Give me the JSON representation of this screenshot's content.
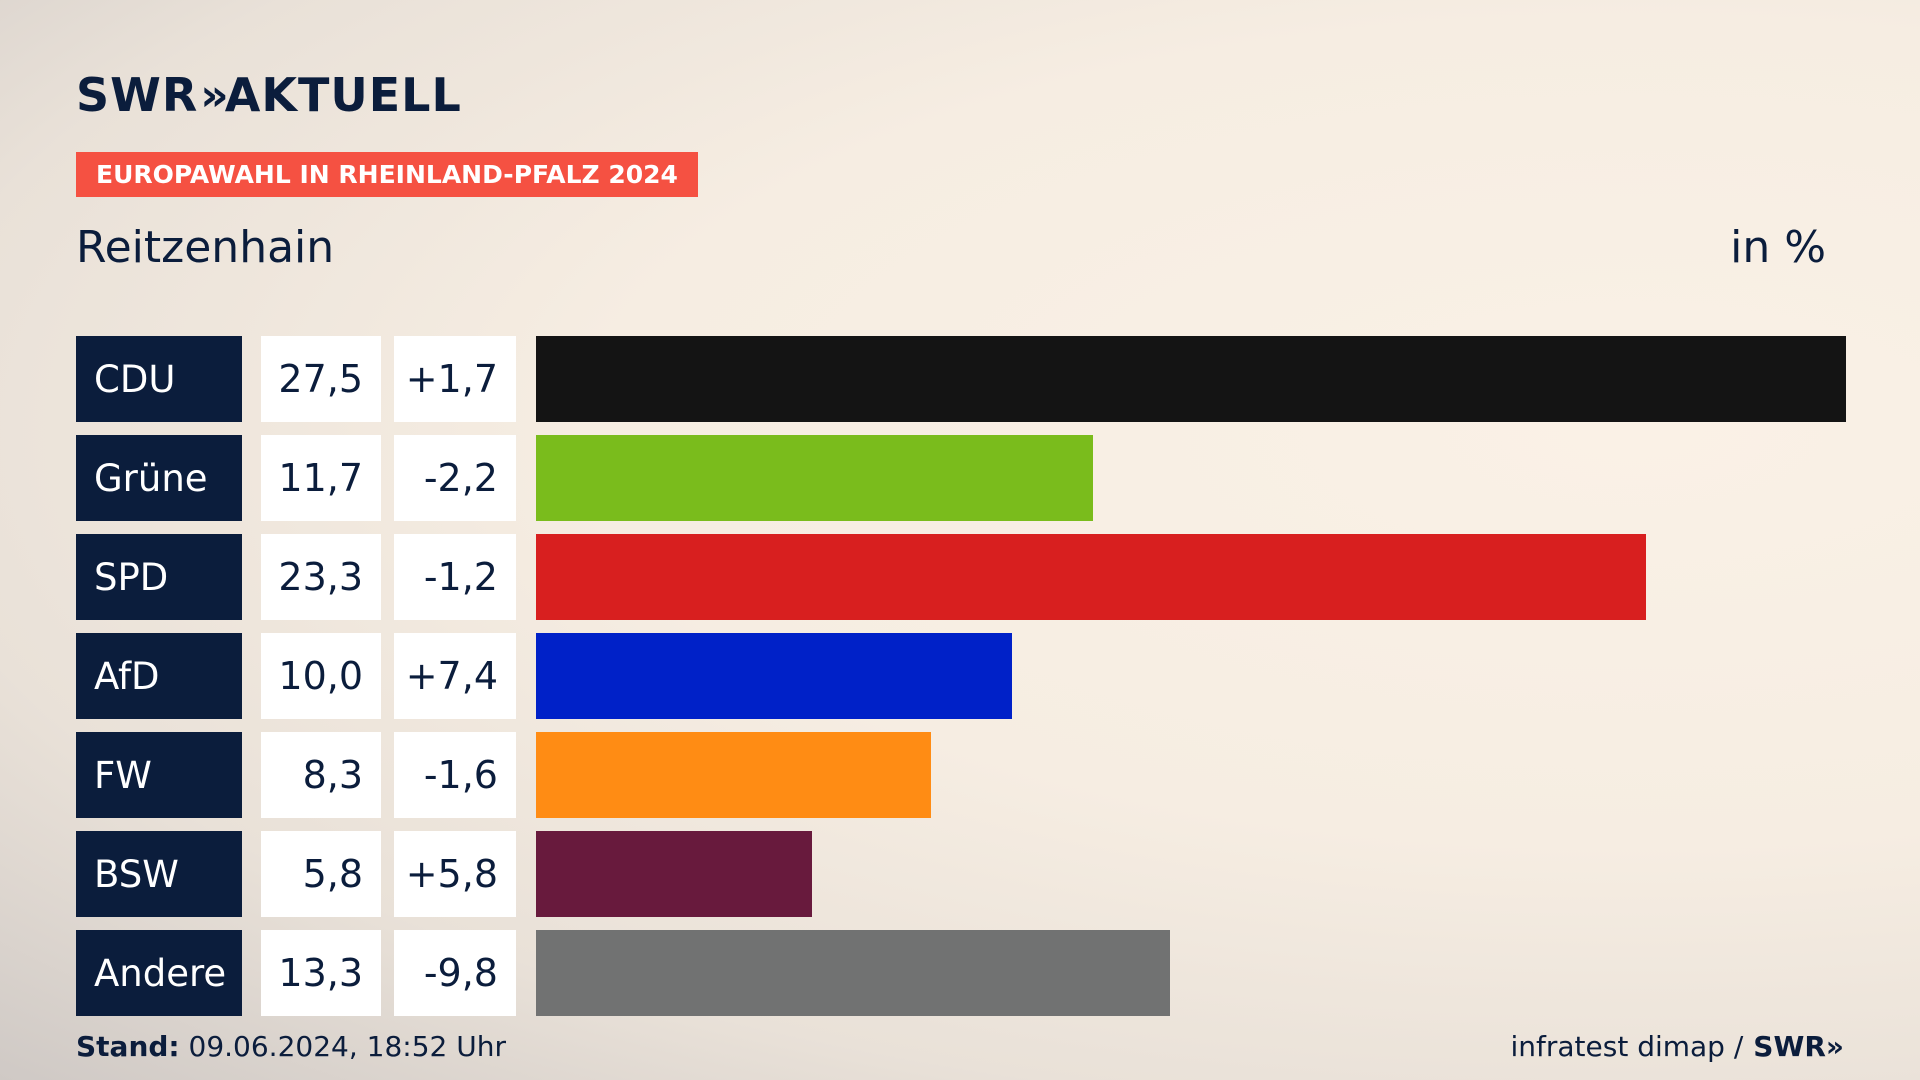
{
  "header": {
    "logo_swr": "SWR",
    "logo_chevrons": "»",
    "logo_aktuell": "AKTUELL",
    "banner": "EUROPAWAHL IN RHEINLAND-PFALZ 2024",
    "place": "Reitzenhain",
    "unit": "in %"
  },
  "footer": {
    "stand_label": "Stand:",
    "stand_value": " 09.06.2024, 18:52 Uhr",
    "source": "infratest dimap /",
    "source_brand": "SWR»"
  },
  "chart_data": {
    "type": "bar",
    "categories": [
      "CDU",
      "Grüne",
      "SPD",
      "AfD",
      "FW",
      "BSW",
      "Andere"
    ],
    "values": [
      27.5,
      11.7,
      23.3,
      10.0,
      8.3,
      5.8,
      13.3
    ],
    "values_label": [
      "27,5",
      "11,7",
      "23,3",
      "10,0",
      "8,3",
      "5,8",
      "13,3"
    ],
    "diff_label": [
      "+1,7",
      "-2,2",
      "-1,2",
      "+7,4",
      "-1,6",
      "+5,8",
      "-9,8"
    ],
    "colors": [
      "#141414",
      "#7abc1c",
      "#d81f1f",
      "#0021c8",
      "#ff8c14",
      "#681a3d",
      "#717272"
    ],
    "xlim": [
      0,
      27.5
    ]
  }
}
